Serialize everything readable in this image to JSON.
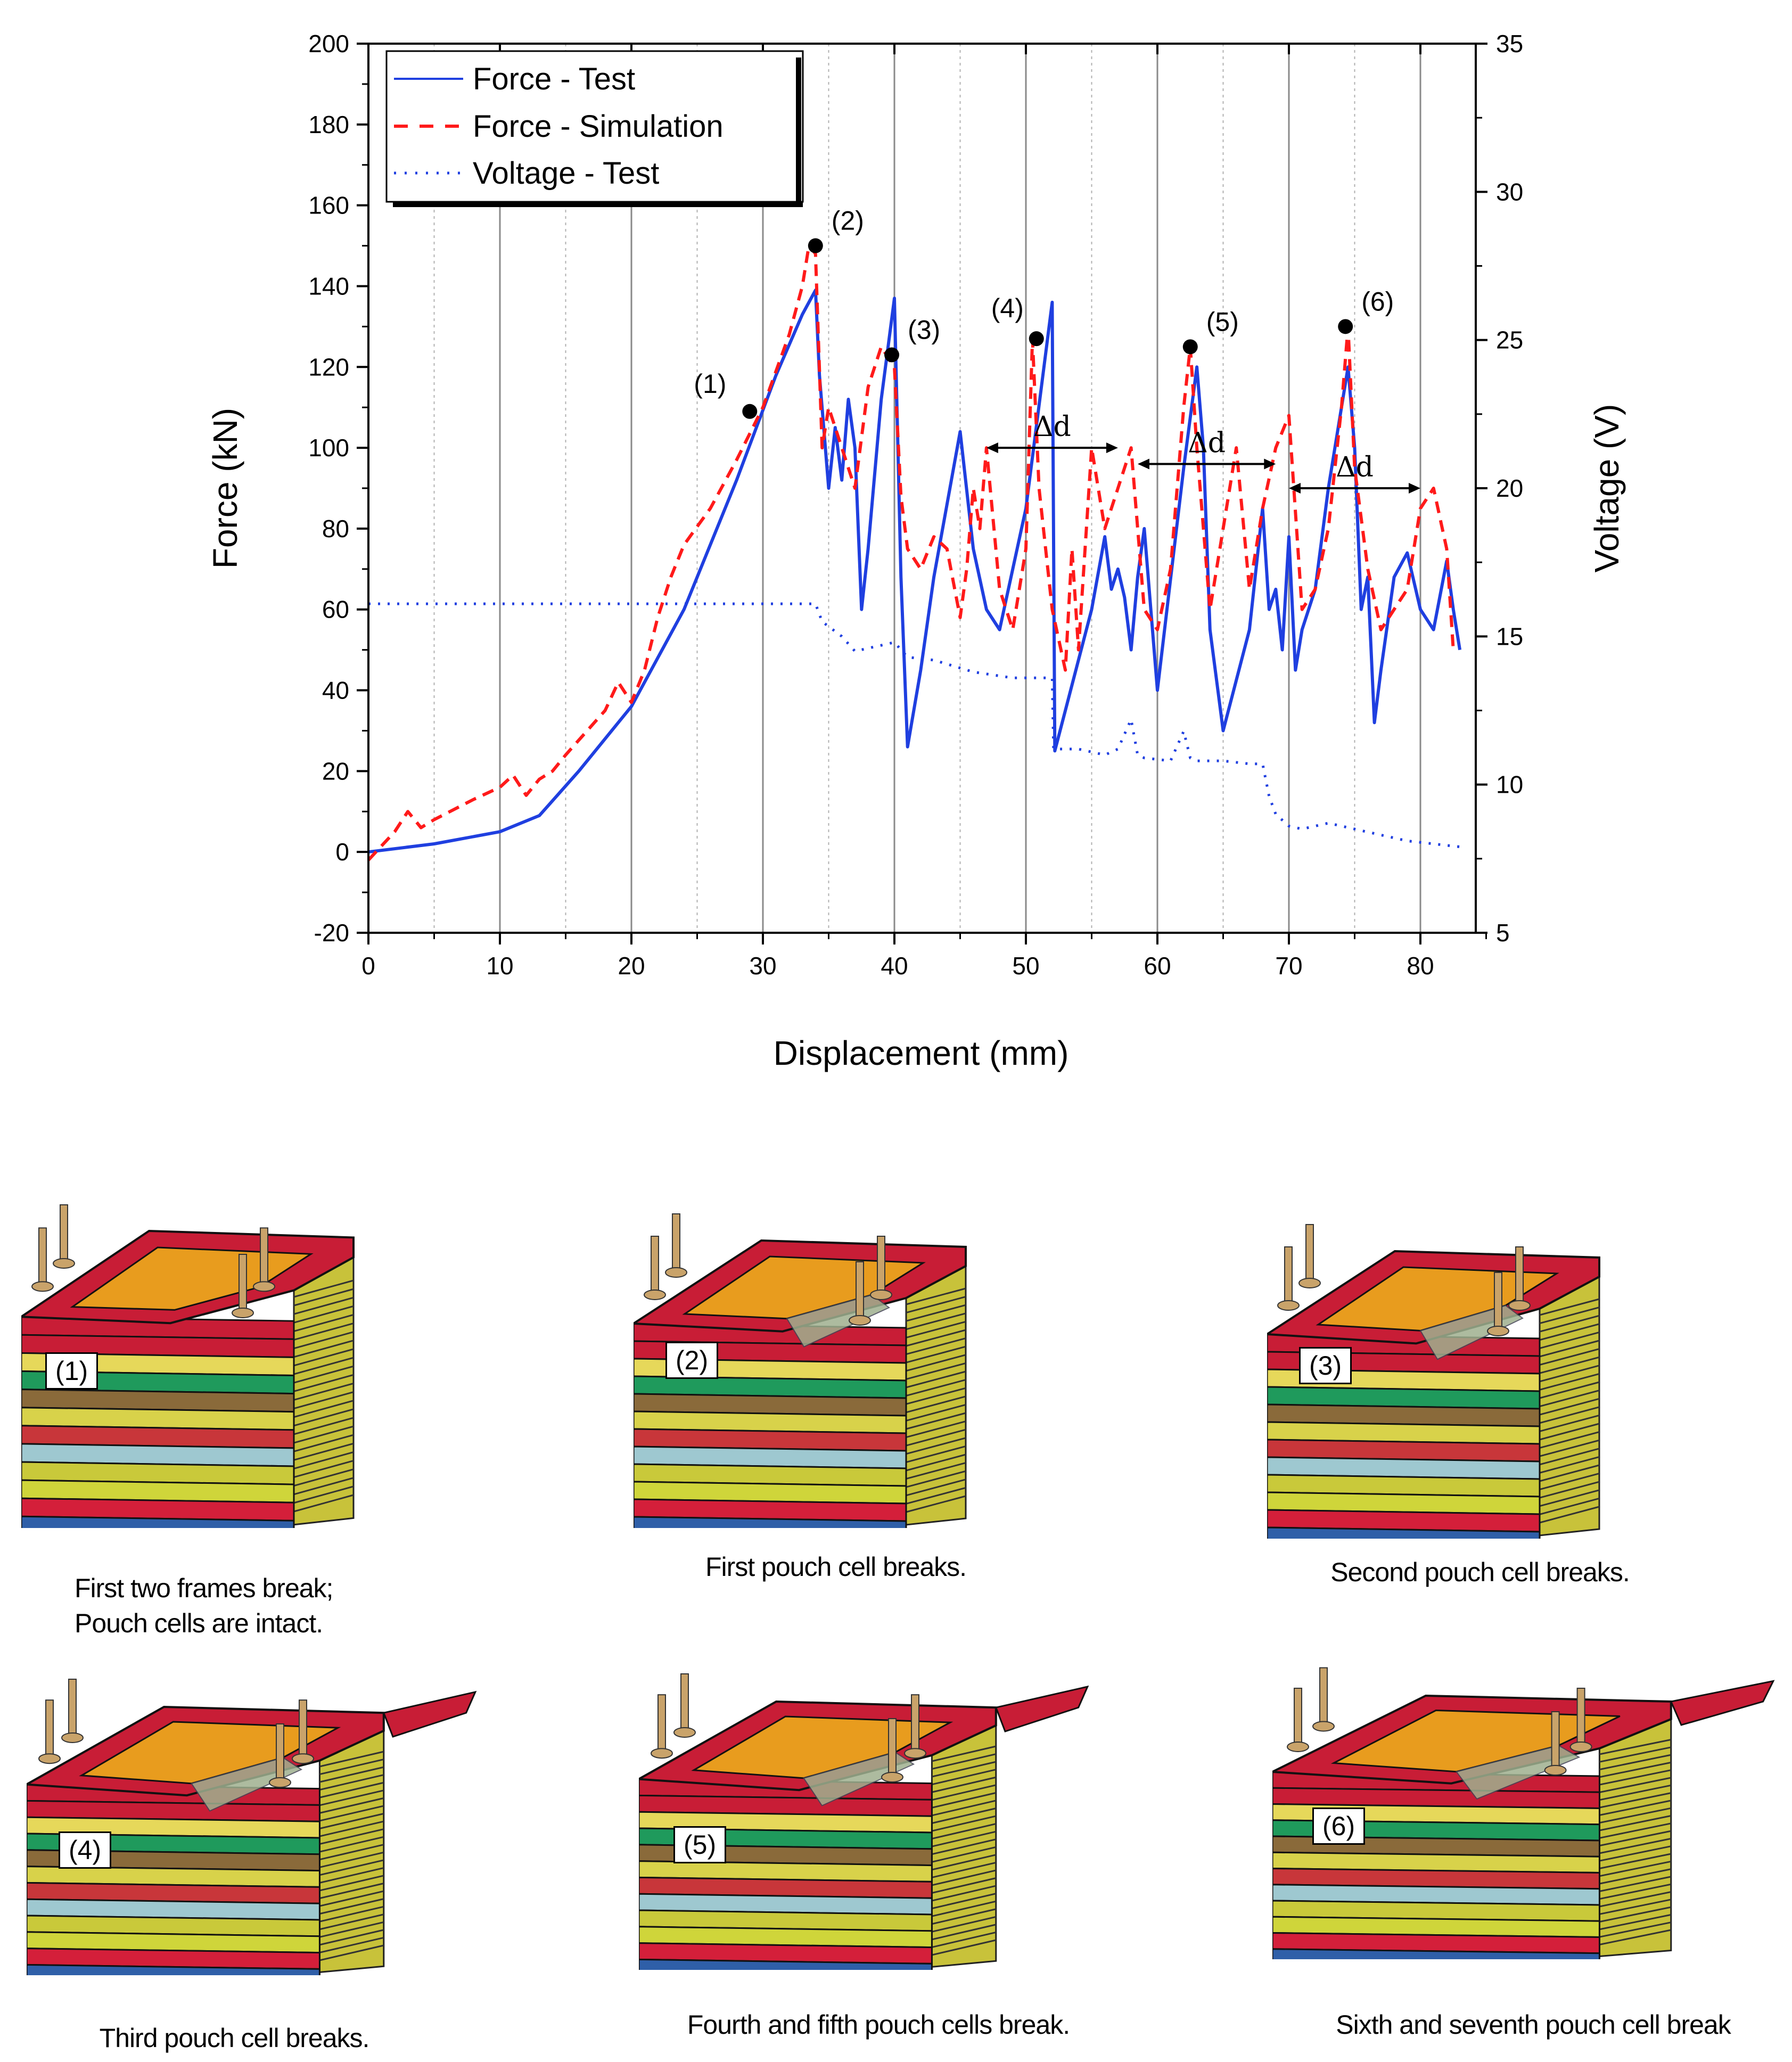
{
  "chart_data": {
    "type": "line",
    "xlabel": "Displacement (mm)",
    "ylabel": "Force (kN)",
    "y2label": "Voltage (V)",
    "xlim": [
      0,
      85
    ],
    "ylim": [
      -20,
      200
    ],
    "y2lim": [
      5,
      35
    ],
    "x_ticks": [
      "0",
      "10",
      "20",
      "30",
      "40",
      "50",
      "60",
      "70",
      "80"
    ],
    "y_ticks": [
      "-20",
      "0",
      "20",
      "40",
      "60",
      "80",
      "100",
      "120",
      "140",
      "160",
      "180",
      "200"
    ],
    "y2_ticks": [
      "5",
      "10",
      "15",
      "20",
      "25",
      "30",
      "35"
    ],
    "legend": [
      "Force - Test",
      "Force - Simulation",
      "Voltage - Test"
    ],
    "legend_position": "top-left",
    "series": [
      {
        "name": "Force - Test",
        "axis": "left",
        "color": "#1f3fe0",
        "style": "solid",
        "x": [
          0,
          5,
          10,
          13,
          16,
          20,
          24,
          28,
          31,
          33,
          34,
          34.3,
          35,
          35.5,
          36,
          36.5,
          37,
          37.5,
          38,
          39,
          40,
          40.5,
          41,
          42,
          43,
          45,
          46,
          47,
          48,
          50,
          52,
          52.2,
          53,
          55,
          56,
          56.5,
          57,
          57.5,
          58,
          58.5,
          59,
          60,
          62,
          63,
          63.5,
          64,
          65,
          67,
          68,
          68.5,
          69,
          69.5,
          70,
          70.5,
          71,
          72,
          73,
          74.5,
          75,
          75.5,
          76,
          76.5,
          77,
          78,
          79,
          80,
          81,
          82,
          82.5,
          83
        ],
        "y": [
          0,
          2,
          5,
          9,
          20,
          36,
          60,
          92,
          118,
          133,
          139,
          118,
          90,
          105,
          92,
          112,
          100,
          60,
          75,
          112,
          137,
          68,
          26,
          45,
          68,
          104,
          75,
          60,
          55,
          85,
          136,
          25,
          35,
          60,
          78,
          65,
          70,
          63,
          50,
          68,
          80,
          40,
          95,
          120,
          100,
          55,
          30,
          55,
          85,
          60,
          65,
          50,
          78,
          45,
          55,
          65,
          90,
          120,
          100,
          60,
          68,
          32,
          45,
          68,
          74,
          60,
          55,
          72,
          60,
          50
        ]
      },
      {
        "name": "Force - Simulation",
        "axis": "left",
        "color": "#ff1a1a",
        "style": "dashed",
        "x": [
          0,
          2,
          3,
          4,
          5,
          8,
          10,
          11,
          12,
          13,
          14,
          15,
          18,
          19,
          20,
          21,
          22,
          23,
          24,
          26,
          28,
          30,
          32,
          33,
          33.5,
          34,
          34.5,
          35,
          36,
          37,
          38,
          39,
          40,
          40.5,
          41,
          42,
          43,
          44,
          45,
          45.5,
          46,
          46.5,
          47,
          48,
          49,
          50,
          50.5,
          51,
          52,
          53,
          53.5,
          54,
          55,
          56,
          57,
          58,
          59,
          60,
          61,
          62,
          62.5,
          63,
          64,
          65,
          66,
          67,
          68,
          69,
          70,
          71,
          72,
          73,
          74,
          74.5,
          75,
          76,
          77,
          78,
          79,
          80,
          81,
          82,
          82.5
        ],
        "y": [
          -2,
          5,
          10,
          6,
          8,
          13,
          16,
          19,
          14,
          18,
          20,
          24,
          35,
          42,
          37,
          45,
          58,
          68,
          76,
          85,
          97,
          110,
          128,
          140,
          150,
          148,
          100,
          110,
          100,
          90,
          115,
          125,
          120,
          88,
          75,
          70,
          78,
          75,
          58,
          70,
          90,
          80,
          100,
          65,
          55,
          75,
          127,
          90,
          60,
          45,
          75,
          50,
          100,
          80,
          90,
          100,
          60,
          55,
          70,
          110,
          125,
          100,
          60,
          80,
          100,
          65,
          85,
          100,
          108,
          60,
          65,
          80,
          110,
          130,
          95,
          70,
          55,
          60,
          65,
          85,
          90,
          75,
          50
        ]
      },
      {
        "name": "Voltage - Test",
        "axis": "right",
        "color": "#1f3fe0",
        "style": "dotted",
        "x": [
          0,
          10,
          20,
          30,
          34,
          34.5,
          36,
          37,
          38,
          40,
          41,
          43,
          46,
          49,
          52,
          52.1,
          54,
          56,
          57,
          58,
          58.5,
          59,
          61,
          62,
          62.5,
          63,
          65,
          67,
          68,
          68.5,
          69,
          70,
          71,
          73,
          75,
          77,
          79,
          81,
          83
        ],
        "y": [
          16.1,
          16.1,
          16.1,
          16.1,
          16.1,
          15.5,
          15.0,
          14.5,
          14.6,
          14.8,
          14.3,
          14.2,
          13.8,
          13.6,
          13.6,
          11.2,
          11.2,
          11.0,
          11.2,
          12.2,
          11.0,
          10.9,
          10.8,
          11.8,
          10.9,
          10.8,
          10.8,
          10.7,
          10.7,
          9.6,
          9.0,
          8.6,
          8.5,
          8.7,
          8.5,
          8.3,
          8.1,
          8.0,
          7.9
        ]
      }
    ],
    "markers": [
      {
        "label": "(1)",
        "x": 29,
        "y": 109
      },
      {
        "label": "(2)",
        "x": 34,
        "y": 150
      },
      {
        "label": "(3)",
        "x": 39.8,
        "y": 123
      },
      {
        "label": "(4)",
        "x": 50.8,
        "y": 127
      },
      {
        "label": "(5)",
        "x": 62.5,
        "y": 125
      },
      {
        "label": "(6)",
        "x": 74.3,
        "y": 130
      }
    ],
    "intervals": [
      {
        "label": "Δd",
        "x_start": 47,
        "x_end": 57,
        "y": 100
      },
      {
        "label": "Δd",
        "x_start": 58.5,
        "x_end": 69,
        "y": 96
      },
      {
        "label": "Δd",
        "x_start": 70,
        "x_end": 80,
        "y": 90
      }
    ]
  },
  "panels": [
    {
      "label": "(1)",
      "caption_lines": [
        "First two frames break;",
        "Pouch cells are intact."
      ]
    },
    {
      "label": "(2)",
      "caption_lines": [
        "First pouch cell breaks."
      ]
    },
    {
      "label": "(3)",
      "caption_lines": [
        "Second pouch cell breaks."
      ]
    },
    {
      "label": "(4)",
      "caption_lines": [
        "Third pouch cell breaks."
      ]
    },
    {
      "label": "(5)",
      "caption_lines": [
        "Fourth and fifth pouch cells break."
      ]
    },
    {
      "label": "(6)",
      "caption_lines": [
        "Sixth and seventh pouch cell break"
      ]
    }
  ],
  "colors": {
    "layers": [
      "#d41f3a",
      "#2f5fa8",
      "#e6d85a",
      "#1f9a5c",
      "#8a6a3a",
      "#d8d24a",
      "#c8363a",
      "#9ec8d0",
      "#c9c93a",
      "#cfd53a"
    ],
    "frame": "#c81d36",
    "plate": "#e89c1e",
    "post": "#c9a36a"
  }
}
